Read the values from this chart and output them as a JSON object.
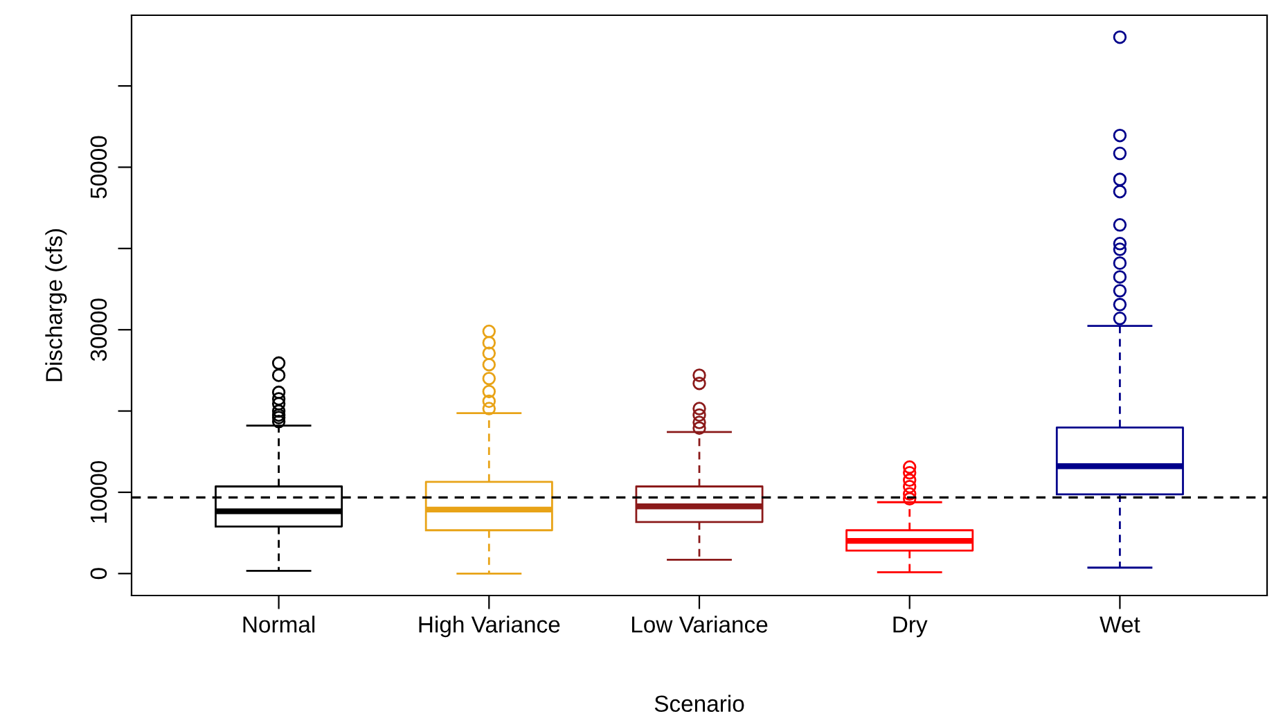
{
  "chart_data": {
    "type": "box",
    "xlabel": "Scenario",
    "ylabel": "Discharge (cfs)",
    "categories": [
      "Normal",
      "High Variance",
      "Low Variance",
      "Dry",
      "Wet"
    ],
    "colors": [
      "#000000",
      "#e8a317",
      "#8b1a1a",
      "#ff0000",
      "#00008b"
    ],
    "boxes": [
      {
        "low": 340,
        "q1": 5790,
        "median": 7660,
        "q3": 10720,
        "high": 18210,
        "outliers": [
          18700,
          19200,
          19500,
          20000,
          20900,
          21500,
          22300,
          24400,
          25900
        ]
      },
      {
        "low": 0,
        "q1": 5330,
        "median": 7880,
        "q3": 11290,
        "high": 19740,
        "outliers": [
          20300,
          21200,
          22400,
          24000,
          25700,
          27100,
          28400,
          29800
        ]
      },
      {
        "low": 1700,
        "q1": 6350,
        "median": 8270,
        "q3": 10720,
        "high": 17410,
        "outliers": [
          17900,
          18600,
          19500,
          20300,
          23400,
          24400
        ]
      },
      {
        "low": 170,
        "q1": 2830,
        "median": 4020,
        "q3": 5330,
        "high": 8780,
        "outliers": [
          9200,
          9800,
          10700,
          11500,
          12400,
          13100
        ]
      },
      {
        "low": 730,
        "q1": 9750,
        "median": 13210,
        "q3": 17980,
        "high": 30470,
        "outliers": [
          31400,
          33100,
          34800,
          36500,
          38200,
          39900,
          40600,
          42900,
          47000,
          48500,
          51700,
          53900,
          66000
        ]
      }
    ],
    "ylim": [
      -2700,
      68700
    ],
    "yticks": [
      0,
      10000,
      {
        "value": 20000,
        "label": null
      },
      30000,
      {
        "value": 40000,
        "label": null
      },
      50000,
      {
        "value": 60000,
        "label": null
      }
    ],
    "ref_lines": [
      {
        "axis": "y",
        "value": 9360,
        "label": null,
        "color": "#000000",
        "line_style": "dashed"
      }
    ],
    "grid": false,
    "legend": false
  }
}
